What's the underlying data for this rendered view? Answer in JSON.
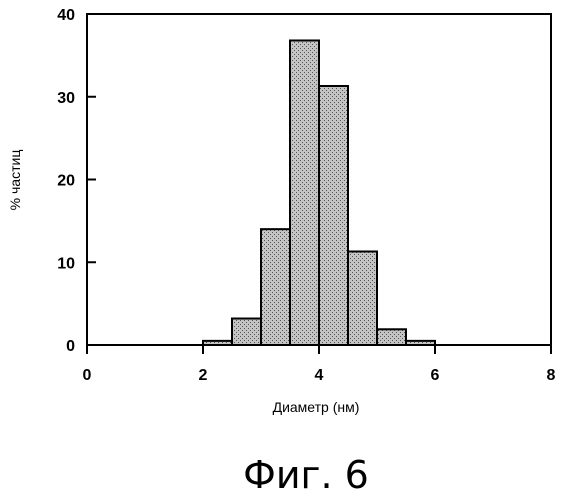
{
  "chart_data": {
    "type": "bar",
    "subtype": "histogram",
    "bin_width": 0.5,
    "bins": [
      {
        "x0": 2.0,
        "x1": 2.5,
        "value": 0.5
      },
      {
        "x0": 2.5,
        "x1": 3.0,
        "value": 3.2
      },
      {
        "x0": 3.0,
        "x1": 3.5,
        "value": 14.0
      },
      {
        "x0": 3.5,
        "x1": 4.0,
        "value": 36.8
      },
      {
        "x0": 4.0,
        "x1": 4.5,
        "value": 31.3
      },
      {
        "x0": 4.5,
        "x1": 5.0,
        "value": 11.3
      },
      {
        "x0": 5.0,
        "x1": 5.5,
        "value": 1.9
      },
      {
        "x0": 5.5,
        "x1": 6.0,
        "value": 0.5
      }
    ],
    "xlabel": "Диаметр (нм)",
    "ylabel": "% частиц",
    "xlim": [
      0,
      8
    ],
    "ylim": [
      0,
      40
    ],
    "xticks": [
      "0",
      "2",
      "4",
      "6",
      "8"
    ],
    "yticks": [
      "0",
      "10",
      "20",
      "30",
      "40"
    ],
    "grid": false,
    "bar_fill": "#bcbcbc",
    "bar_stroke": "#000000"
  },
  "caption": "Фиг. 6"
}
